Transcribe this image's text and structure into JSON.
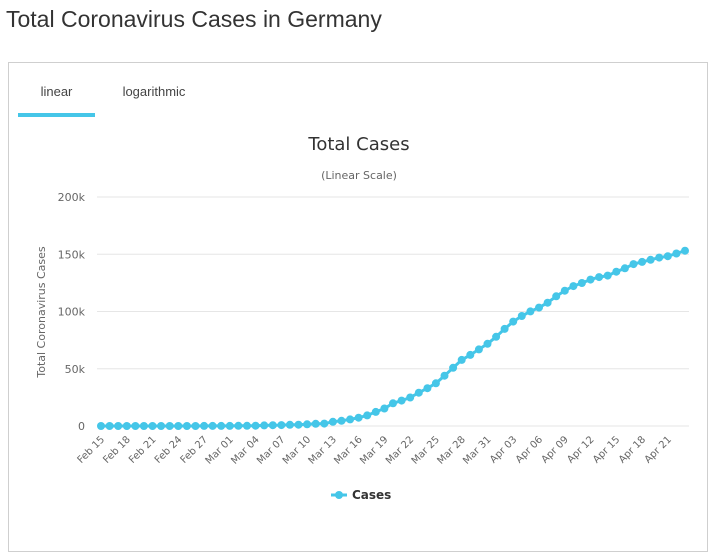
{
  "page": {
    "title": "Total Coronavirus Cases in Germany"
  },
  "tabs": [
    {
      "label": "linear",
      "active": true
    },
    {
      "label": "logarithmic",
      "active": false
    }
  ],
  "chart_data": {
    "type": "line",
    "title": "Total Cases",
    "subtitle": "(Linear Scale)",
    "xlabel": "",
    "ylabel": "Total Coronavirus Cases",
    "ylim": [
      0,
      200000
    ],
    "yticks": [
      {
        "value": 0,
        "label": "0"
      },
      {
        "value": 50000,
        "label": "50k"
      },
      {
        "value": 100000,
        "label": "100k"
      },
      {
        "value": 150000,
        "label": "150k"
      },
      {
        "value": 200000,
        "label": "200k"
      }
    ],
    "x_tick_labels": [
      "Feb 15",
      "Feb 18",
      "Feb 21",
      "Feb 24",
      "Feb 27",
      "Mar 01",
      "Mar 04",
      "Mar 07",
      "Mar 10",
      "Mar 13",
      "Mar 16",
      "Mar 19",
      "Mar 22",
      "Mar 25",
      "Mar 28",
      "Mar 31",
      "Apr 03",
      "Apr 06",
      "Apr 09",
      "Apr 12",
      "Apr 15",
      "Apr 18",
      "Apr 21"
    ],
    "x_tick_every": 3,
    "grid": true,
    "legend_position": "bottom-center",
    "colors": {
      "series": "#45c6e8",
      "grid": "#e6e6e6",
      "tab_active": "#45c6e8"
    },
    "categories": [
      "Feb 15",
      "Feb 16",
      "Feb 17",
      "Feb 18",
      "Feb 19",
      "Feb 20",
      "Feb 21",
      "Feb 22",
      "Feb 23",
      "Feb 24",
      "Feb 25",
      "Feb 26",
      "Feb 27",
      "Feb 28",
      "Feb 29",
      "Mar 01",
      "Mar 02",
      "Mar 03",
      "Mar 04",
      "Mar 05",
      "Mar 06",
      "Mar 07",
      "Mar 08",
      "Mar 09",
      "Mar 10",
      "Mar 11",
      "Mar 12",
      "Mar 13",
      "Mar 14",
      "Mar 15",
      "Mar 16",
      "Mar 17",
      "Mar 18",
      "Mar 19",
      "Mar 20",
      "Mar 21",
      "Mar 22",
      "Mar 23",
      "Mar 24",
      "Mar 25",
      "Mar 26",
      "Mar 27",
      "Mar 28",
      "Mar 29",
      "Mar 30",
      "Mar 31",
      "Apr 01",
      "Apr 02",
      "Apr 03",
      "Apr 04",
      "Apr 05",
      "Apr 06",
      "Apr 07",
      "Apr 08",
      "Apr 09",
      "Apr 10",
      "Apr 11",
      "Apr 12",
      "Apr 13",
      "Apr 14",
      "Apr 15",
      "Apr 16",
      "Apr 17",
      "Apr 18",
      "Apr 19",
      "Apr 20",
      "Apr 21",
      "Apr 22",
      "Apr 23"
    ],
    "series": [
      {
        "name": "Cases",
        "values": [
          16,
          16,
          16,
          16,
          16,
          16,
          16,
          16,
          16,
          16,
          18,
          27,
          46,
          48,
          79,
          130,
          159,
          196,
          262,
          482,
          670,
          799,
          1040,
          1176,
          1457,
          1908,
          2078,
          3675,
          4585,
          5795,
          7272,
          9257,
          12327,
          15320,
          19848,
          22213,
          24873,
          29056,
          32986,
          37323,
          43938,
          50871,
          57695,
          62095,
          66885,
          71808,
          77872,
          84794,
          91159,
          96092,
          100123,
          103374,
          107663,
          113296,
          118181,
          122171,
          124908,
          127854,
          130072,
          131359,
          134753,
          137698,
          141397,
          143342,
          145184,
          147065,
          148291,
          150648,
          153129
        ]
      }
    ]
  }
}
